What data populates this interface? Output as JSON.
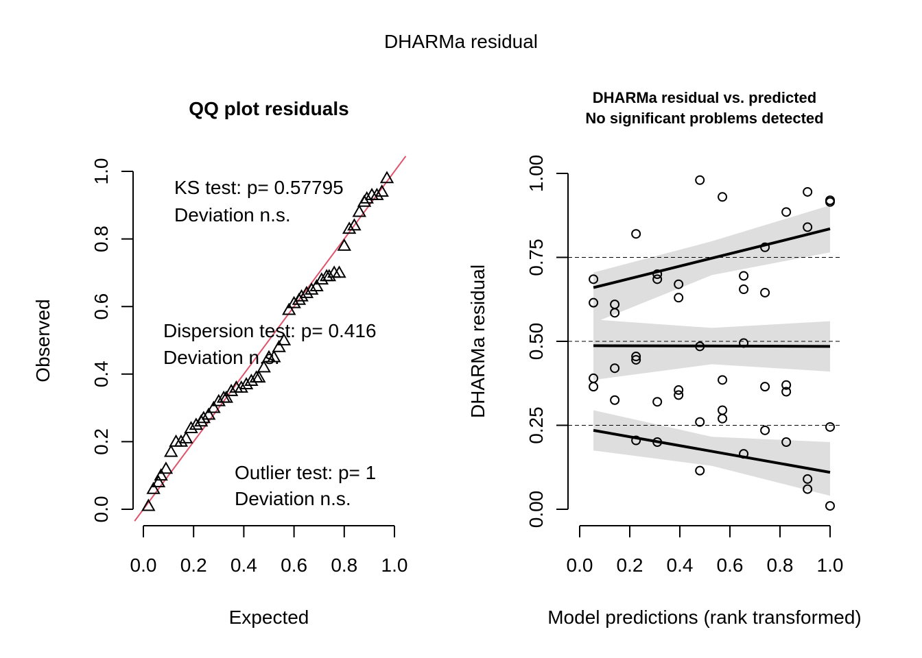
{
  "figure": {
    "main_title": "DHARMa residual"
  },
  "chart_data": [
    {
      "type": "scatter",
      "title": "QQ plot residuals",
      "xlabel": "Expected",
      "ylabel": "Observed",
      "xlim": [
        0,
        1
      ],
      "ylim": [
        0,
        1
      ],
      "x_ticks": [
        "0.0",
        "0.2",
        "0.4",
        "0.6",
        "0.8",
        "1.0"
      ],
      "y_ticks": [
        "0.0",
        "0.2",
        "0.4",
        "0.6",
        "0.8",
        "1.0"
      ],
      "reference_line": {
        "intercept": 0,
        "slope": 1,
        "color": "#DF536B"
      },
      "marker": "triangle",
      "annotations": [
        {
          "line1": "KS test: p= 0.57795",
          "line2": "Deviation  n.s."
        },
        {
          "line1": "Dispersion test: p= 0.416",
          "line2": "Deviation  n.s."
        },
        {
          "line1": "Outlier test: p= 1",
          "line2": "Deviation  n.s."
        }
      ],
      "points": [
        [
          0.02,
          0.01
        ],
        [
          0.04,
          0.06
        ],
        [
          0.06,
          0.08
        ],
        [
          0.07,
          0.1
        ],
        [
          0.09,
          0.12
        ],
        [
          0.11,
          0.17
        ],
        [
          0.13,
          0.2
        ],
        [
          0.15,
          0.2
        ],
        [
          0.17,
          0.21
        ],
        [
          0.19,
          0.24
        ],
        [
          0.21,
          0.25
        ],
        [
          0.23,
          0.26
        ],
        [
          0.24,
          0.27
        ],
        [
          0.26,
          0.28
        ],
        [
          0.28,
          0.3
        ],
        [
          0.3,
          0.32
        ],
        [
          0.32,
          0.33
        ],
        [
          0.33,
          0.33
        ],
        [
          0.35,
          0.35
        ],
        [
          0.37,
          0.36
        ],
        [
          0.39,
          0.36
        ],
        [
          0.41,
          0.37
        ],
        [
          0.43,
          0.38
        ],
        [
          0.45,
          0.39
        ],
        [
          0.46,
          0.39
        ],
        [
          0.48,
          0.42
        ],
        [
          0.5,
          0.45
        ],
        [
          0.52,
          0.45
        ],
        [
          0.54,
          0.48
        ],
        [
          0.56,
          0.5
        ],
        [
          0.58,
          0.59
        ],
        [
          0.6,
          0.61
        ],
        [
          0.62,
          0.62
        ],
        [
          0.63,
          0.63
        ],
        [
          0.65,
          0.64
        ],
        [
          0.67,
          0.65
        ],
        [
          0.69,
          0.66
        ],
        [
          0.71,
          0.68
        ],
        [
          0.73,
          0.69
        ],
        [
          0.74,
          0.69
        ],
        [
          0.76,
          0.7
        ],
        [
          0.78,
          0.7
        ],
        [
          0.8,
          0.78
        ],
        [
          0.82,
          0.83
        ],
        [
          0.84,
          0.84
        ],
        [
          0.86,
          0.88
        ],
        [
          0.88,
          0.91
        ],
        [
          0.89,
          0.92
        ],
        [
          0.91,
          0.93
        ],
        [
          0.93,
          0.93
        ],
        [
          0.95,
          0.94
        ],
        [
          0.97,
          0.98
        ]
      ]
    },
    {
      "type": "scatter",
      "title": "DHARMa residual vs. predicted",
      "subtitle": "No significant problems detected",
      "xlabel": "Model predictions (rank transformed)",
      "ylabel": "DHARMa residual",
      "xlim": [
        0,
        1
      ],
      "ylim": [
        0,
        1
      ],
      "x_ticks": [
        "0.0",
        "0.2",
        "0.4",
        "0.6",
        "0.8",
        "1.0"
      ],
      "y_ticks": [
        "0.00",
        "0.25",
        "0.50",
        "0.75",
        "1.00"
      ],
      "reference_lines": [
        0.25,
        0.5,
        0.75
      ],
      "marker": "circle",
      "points": [
        [
          0.055,
          0.685
        ],
        [
          0.055,
          0.615
        ],
        [
          0.055,
          0.39
        ],
        [
          0.055,
          0.365
        ],
        [
          0.14,
          0.61
        ],
        [
          0.14,
          0.585
        ],
        [
          0.14,
          0.42
        ],
        [
          0.14,
          0.325
        ],
        [
          0.225,
          0.82
        ],
        [
          0.225,
          0.455
        ],
        [
          0.225,
          0.445
        ],
        [
          0.225,
          0.205
        ],
        [
          0.31,
          0.7
        ],
        [
          0.31,
          0.685
        ],
        [
          0.31,
          0.32
        ],
        [
          0.31,
          0.2
        ],
        [
          0.395,
          0.67
        ],
        [
          0.395,
          0.63
        ],
        [
          0.395,
          0.355
        ],
        [
          0.395,
          0.34
        ],
        [
          0.48,
          0.98
        ],
        [
          0.48,
          0.485
        ],
        [
          0.48,
          0.26
        ],
        [
          0.48,
          0.115
        ],
        [
          0.57,
          0.93
        ],
        [
          0.57,
          0.385
        ],
        [
          0.57,
          0.295
        ],
        [
          0.57,
          0.27
        ],
        [
          0.655,
          0.695
        ],
        [
          0.655,
          0.655
        ],
        [
          0.655,
          0.495
        ],
        [
          0.655,
          0.165
        ],
        [
          0.74,
          0.78
        ],
        [
          0.74,
          0.645
        ],
        [
          0.74,
          0.365
        ],
        [
          0.74,
          0.235
        ],
        [
          0.825,
          0.885
        ],
        [
          0.825,
          0.37
        ],
        [
          0.825,
          0.35
        ],
        [
          0.825,
          0.2
        ],
        [
          0.91,
          0.945
        ],
        [
          0.91,
          0.84
        ],
        [
          0.91,
          0.09
        ],
        [
          0.91,
          0.06
        ],
        [
          1.0,
          0.92
        ],
        [
          1.0,
          0.915
        ],
        [
          1.0,
          0.245
        ],
        [
          1.0,
          0.01
        ]
      ],
      "quantile_fits": [
        {
          "quantile": 0.25,
          "x": [
            0.055,
            1.0
          ],
          "y": [
            0.235,
            0.11
          ],
          "band_lower": [
            0.175,
            0.04
          ],
          "band_upper": [
            0.295,
            0.2
          ]
        },
        {
          "quantile": 0.5,
          "x": [
            0.055,
            1.0
          ],
          "y": [
            0.487,
            0.485
          ],
          "band_lower": [
            0.385,
            0.41
          ],
          "band_upper": [
            0.565,
            0.56
          ]
        },
        {
          "quantile": 0.75,
          "x": [
            0.055,
            1.0
          ],
          "y": [
            0.66,
            0.835
          ],
          "band_lower": [
            0.555,
            0.765
          ],
          "band_upper": [
            0.705,
            0.905
          ]
        }
      ]
    }
  ]
}
